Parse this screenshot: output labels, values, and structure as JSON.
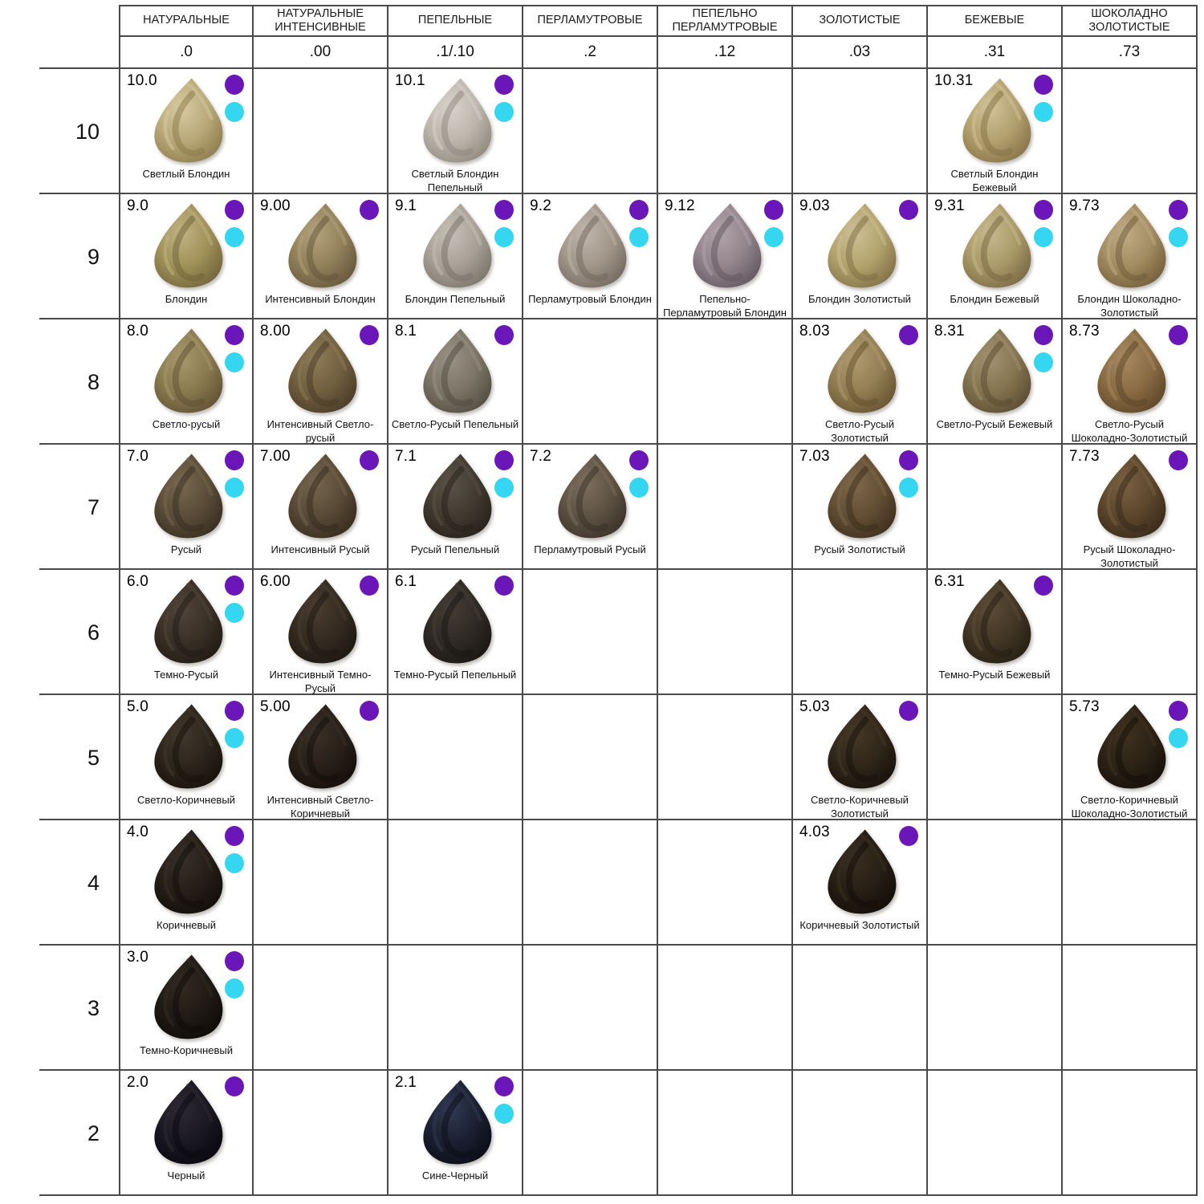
{
  "chart_data": {
    "type": "table",
    "title": "Hair color shade palette chart",
    "layout": {
      "grid_color": "#4a4a4a",
      "background": "#ffffff",
      "legend_position": "per-cell top-right dots"
    },
    "legend_dots": {
      "purple": "#6a16b8",
      "cyan": "#35d6f0"
    },
    "columns": [
      {
        "title": "НАТУРАЛЬНЫЕ",
        "code": ".0"
      },
      {
        "title": "НАТУРАЛЬНЫЕ ИНТЕНСИВНЫЕ",
        "code": ".00"
      },
      {
        "title": "ПЕПЕЛЬНЫЕ",
        "code": ".1/.10"
      },
      {
        "title": "ПЕРЛАМУТРОВЫЕ",
        "code": ".2"
      },
      {
        "title": "ПЕПЕЛЬНО ПЕРЛАМУТРОВЫЕ",
        "code": ".12"
      },
      {
        "title": "ЗОЛОТИСТЫЕ",
        "code": ".03"
      },
      {
        "title": "БЕЖЕВЫЕ",
        "code": ".31"
      },
      {
        "title": "ШОКОЛАДНО ЗОЛОТИСТЫЕ",
        "code": ".73"
      }
    ],
    "rows": [
      {
        "level": "10",
        "cells": [
          {
            "code": "10.0",
            "name": "Светлый Блондин",
            "dots": [
              "purple",
              "cyan"
            ],
            "color": {
              "light": "#d8cca2",
              "base": "#b9a878",
              "dark": "#8a7848"
            }
          },
          null,
          {
            "code": "10.1",
            "name": "Светлый Блондин Пепельный",
            "dots": [
              "purple",
              "cyan"
            ],
            "color": {
              "light": "#d8d3cc",
              "base": "#bcb5ab",
              "dark": "#8d857a"
            }
          },
          null,
          null,
          null,
          {
            "code": "10.31",
            "name": "Светлый Блондин Бежевый",
            "dots": [
              "purple",
              "cyan"
            ],
            "color": {
              "light": "#d2c398",
              "base": "#b2a06e",
              "dark": "#846f44"
            }
          },
          null
        ]
      },
      {
        "level": "9",
        "cells": [
          {
            "code": "9.0",
            "name": "Блондин",
            "dots": [
              "purple",
              "cyan"
            ],
            "color": {
              "light": "#c2b385",
              "base": "#a09058",
              "dark": "#6f6138"
            }
          },
          {
            "code": "9.00",
            "name": "Интенсивный Блондин",
            "dots": [
              "purple"
            ],
            "color": {
              "light": "#b3a37e",
              "base": "#92805a",
              "dark": "#62543a"
            }
          },
          {
            "code": "9.1",
            "name": "Блондин Пепельный",
            "dots": [
              "purple",
              "cyan"
            ],
            "color": {
              "light": "#c6c0b8",
              "base": "#a8a096",
              "dark": "#767066"
            }
          },
          {
            "code": "9.2",
            "name": "Перламутровый Блондин",
            "dots": [
              "purple",
              "cyan"
            ],
            "color": {
              "light": "#c0b6ac",
              "base": "#a2968a",
              "dark": "#6f655c"
            }
          },
          {
            "code": "9.12",
            "name": "Пепельно-Перламутровый Блондин",
            "dots": [
              "purple",
              "cyan"
            ],
            "color": {
              "light": "#b2a4aa",
              "base": "#93848c",
              "dark": "#5f545c"
            }
          },
          {
            "code": "9.03",
            "name": "Блондин Золотистый",
            "dots": [
              "purple"
            ],
            "color": {
              "light": "#cfc096",
              "base": "#b2a26c",
              "dark": "#7d6c42"
            }
          },
          {
            "code": "9.31",
            "name": "Блондин Бежевый",
            "dots": [
              "purple",
              "cyan"
            ],
            "color": {
              "light": "#c8ba90",
              "base": "#aa9a68",
              "dark": "#756440"
            }
          },
          {
            "code": "9.73",
            "name": "Блондин Шоколадно-Золотистый",
            "dots": [
              "purple",
              "cyan"
            ],
            "color": {
              "light": "#c0ab88",
              "base": "#a28c60",
              "dark": "#6e5a38"
            }
          }
        ]
      },
      {
        "level": "8",
        "cells": [
          {
            "code": "8.0",
            "name": "Светло-русый",
            "dots": [
              "purple",
              "cyan"
            ],
            "color": {
              "light": "#a8986e",
              "base": "#8a7a50",
              "dark": "#5c4f30"
            }
          },
          {
            "code": "8.00",
            "name": "Интенсивный Светло-русый",
            "dots": [
              "purple"
            ],
            "color": {
              "light": "#8f7c58",
              "base": "#705e3e",
              "dark": "#473927"
            }
          },
          {
            "code": "8.1",
            "name": "Светло-Русый Пепельный",
            "dots": [
              "purple"
            ],
            "color": {
              "light": "#9a9286",
              "base": "#7c7466",
              "dark": "#4f4a3f"
            }
          },
          null,
          null,
          {
            "code": "8.03",
            "name": "Светло-Русый Золотистый",
            "dots": [
              "purple"
            ],
            "color": {
              "light": "#b09c70",
              "base": "#927e52",
              "dark": "#624f2e"
            }
          },
          {
            "code": "8.31",
            "name": "Светло-Русый Бежевый",
            "dots": [
              "purple",
              "cyan"
            ],
            "color": {
              "light": "#a29270",
              "base": "#847450",
              "dark": "#564a2e"
            }
          },
          {
            "code": "8.73",
            "name": "Светло-Русый Шоколадно-Золотистый",
            "dots": [
              "purple"
            ],
            "color": {
              "light": "#a88a62",
              "base": "#8a6c44",
              "dark": "#5a4326"
            }
          }
        ]
      },
      {
        "level": "7",
        "cells": [
          {
            "code": "7.0",
            "name": "Русый",
            "dots": [
              "purple",
              "cyan"
            ],
            "color": {
              "light": "#78684f",
              "base": "#5a4c38",
              "dark": "#352c1f"
            }
          },
          {
            "code": "7.00",
            "name": "Интенсивный Русый",
            "dots": [
              "purple"
            ],
            "color": {
              "light": "#766650",
              "base": "#584a36",
              "dark": "#34291c"
            }
          },
          {
            "code": "7.1",
            "name": "Русый Пепельный",
            "dots": [
              "purple",
              "cyan"
            ],
            "color": {
              "light": "#5c5348",
              "base": "#413a30",
              "dark": "#241f19"
            }
          },
          {
            "code": "7.2",
            "name": "Перламутровый Русый",
            "dots": [
              "purple",
              "cyan"
            ],
            "color": {
              "light": "#7c6f60",
              "base": "#5e5244",
              "dark": "#382f26"
            }
          },
          null,
          {
            "code": "7.03",
            "name": "Русый Золотистый",
            "dots": [
              "purple",
              "cyan"
            ],
            "color": {
              "light": "#80684a",
              "base": "#624e34",
              "dark": "#3a2d1c"
            }
          },
          null,
          {
            "code": "7.73",
            "name": "Русый Шоколадно-Золотистый",
            "dots": [
              "purple"
            ],
            "color": {
              "light": "#7a6142",
              "base": "#5c462c",
              "dark": "#362818"
            }
          }
        ]
      },
      {
        "level": "6",
        "cells": [
          {
            "code": "6.0",
            "name": "Темно-Русый",
            "dots": [
              "purple",
              "cyan"
            ],
            "color": {
              "light": "#52453a",
              "base": "#3a3026",
              "dark": "#1f1913"
            }
          },
          {
            "code": "6.00",
            "name": "Интенсивный Темно-Русый",
            "dots": [
              "purple"
            ],
            "color": {
              "light": "#4a3d30",
              "base": "#342a20",
              "dark": "#1b150f"
            }
          },
          {
            "code": "6.1",
            "name": "Темно-Русый Пепельный",
            "dots": [
              "purple"
            ],
            "color": {
              "light": "#443d36",
              "base": "#2f2a24",
              "dark": "#181511"
            }
          },
          null,
          null,
          null,
          {
            "code": "6.31",
            "name": "Темно-Русый Бежевый",
            "dots": [
              "purple"
            ],
            "color": {
              "light": "#5c4d38",
              "base": "#423624",
              "dark": "#241c12"
            }
          },
          null
        ]
      },
      {
        "level": "5",
        "cells": [
          {
            "code": "5.0",
            "name": "Светло-Коричневый",
            "dots": [
              "purple",
              "cyan"
            ],
            "color": {
              "light": "#42372c",
              "base": "#2d251c",
              "dark": "#151008"
            }
          },
          {
            "code": "5.00",
            "name": "Интенсивный Светло-Коричневый",
            "dots": [
              "purple"
            ],
            "color": {
              "light": "#3c3128",
              "base": "#281f18",
              "dark": "#120d08"
            }
          },
          null,
          null,
          null,
          {
            "code": "5.03",
            "name": "Светло-Коричневый Золотистый",
            "dots": [
              "purple"
            ],
            "color": {
              "light": "#463827",
              "base": "#30261a",
              "dark": "#16100a"
            }
          },
          null,
          {
            "code": "5.73",
            "name": "Светло-Коричневый Шоколадно-Золотистый",
            "dots": [
              "purple",
              "cyan"
            ],
            "color": {
              "light": "#40321f",
              "base": "#2c2216",
              "dark": "#140e08"
            }
          }
        ]
      },
      {
        "level": "4",
        "cells": [
          {
            "code": "4.0",
            "name": "Коричневый",
            "dots": [
              "purple",
              "cyan"
            ],
            "color": {
              "light": "#383028",
              "base": "#251e18",
              "dark": "#100c08"
            }
          },
          null,
          null,
          null,
          null,
          {
            "code": "4.03",
            "name": "Коричневый Золотистый",
            "dots": [
              "purple"
            ],
            "color": {
              "light": "#3a2f22",
              "base": "#271e14",
              "dark": "#110c07"
            }
          },
          null,
          null
        ]
      },
      {
        "level": "3",
        "cells": [
          {
            "code": "3.0",
            "name": "Темно-Коричневый",
            "dots": [
              "purple",
              "cyan"
            ],
            "color": {
              "light": "#332b22",
              "base": "#1f1a14",
              "dark": "#0d0a07"
            }
          },
          null,
          null,
          null,
          null,
          null,
          null,
          null
        ]
      },
      {
        "level": "2",
        "cells": [
          {
            "code": "2.0",
            "name": "Черный",
            "dots": [
              "purple"
            ],
            "color": {
              "light": "#2e2a34",
              "base": "#191720",
              "dark": "#08070c"
            }
          },
          null,
          {
            "code": "2.1",
            "name": "Сине-Черный",
            "dots": [
              "purple",
              "cyan"
            ],
            "color": {
              "light": "#323a54",
              "base": "#1a2030",
              "dark": "#090b14"
            }
          },
          null,
          null,
          null,
          null,
          null
        ]
      }
    ]
  }
}
